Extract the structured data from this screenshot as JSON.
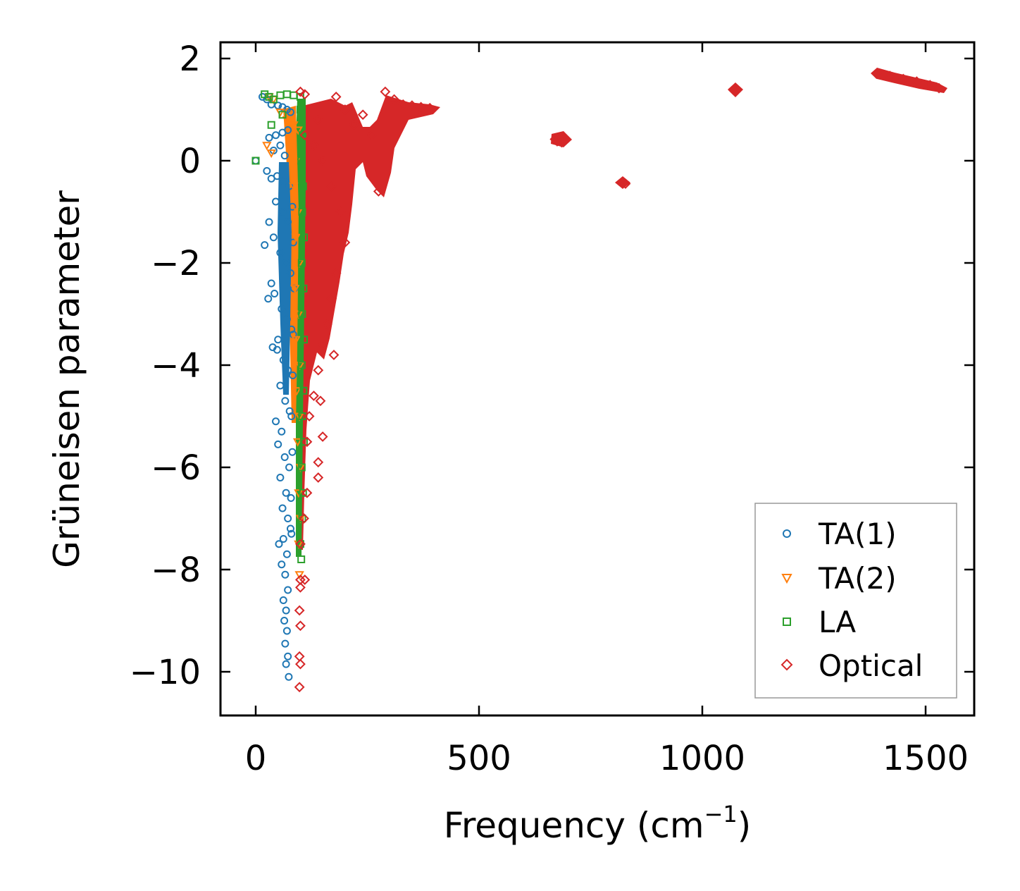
{
  "chart_data": {
    "type": "scatter",
    "title": "",
    "xlabel": "Frequency (cm",
    "xlabel_sup": "−1",
    "xlabel_end": ")",
    "ylabel": "Grüneisen parameter",
    "xlim": [
      -75,
      1610
    ],
    "ylim": [
      -10.85,
      2.3
    ],
    "xticks": [
      0,
      500,
      1000,
      1500
    ],
    "xtick_labels": [
      "0",
      "500",
      "1000",
      "1500"
    ],
    "yticks": [
      2,
      0,
      -2,
      -4,
      -6,
      -8,
      -10
    ],
    "ytick_labels": [
      "2",
      "0",
      "−2",
      "−4",
      "−6",
      "−8",
      "−10"
    ],
    "grid": false,
    "legend_position": "bottom-right",
    "series": [
      {
        "name": "TA(1)",
        "color": "#1f77b4",
        "marker": "circle",
        "points": [
          [
            0,
            0
          ],
          [
            15,
            1.25
          ],
          [
            25,
            1.2
          ],
          [
            35,
            1.1
          ],
          [
            50,
            1.08
          ],
          [
            60,
            1.05
          ],
          [
            70,
            1.0
          ],
          [
            78,
            0.95
          ],
          [
            30,
            0.45
          ],
          [
            45,
            0.5
          ],
          [
            60,
            0.55
          ],
          [
            72,
            0.6
          ],
          [
            40,
            0.2
          ],
          [
            55,
            0.3
          ],
          [
            65,
            0.1
          ],
          [
            25,
            -0.2
          ],
          [
            35,
            -0.35
          ],
          [
            48,
            -0.3
          ],
          [
            62,
            -0.4
          ],
          [
            75,
            -0.5
          ],
          [
            45,
            -0.8
          ],
          [
            60,
            -1.0
          ],
          [
            72,
            -1.2
          ],
          [
            30,
            -1.2
          ],
          [
            40,
            -1.5
          ],
          [
            20,
            -1.65
          ],
          [
            55,
            -1.8
          ],
          [
            68,
            -2.0
          ],
          [
            78,
            -2.2
          ],
          [
            35,
            -2.4
          ],
          [
            42,
            -2.6
          ],
          [
            28,
            -2.7
          ],
          [
            58,
            -2.9
          ],
          [
            70,
            -3.1
          ],
          [
            80,
            -3.3
          ],
          [
            50,
            -3.5
          ],
          [
            38,
            -3.65
          ],
          [
            48,
            -3.7
          ],
          [
            62,
            -3.9
          ],
          [
            72,
            -4.1
          ],
          [
            55,
            -4.4
          ],
          [
            66,
            -4.7
          ],
          [
            76,
            -4.9
          ],
          [
            45,
            -5.1
          ],
          [
            58,
            -5.3
          ],
          [
            50,
            -5.55
          ],
          [
            65,
            -5.8
          ],
          [
            75,
            -6.0
          ],
          [
            55,
            -6.2
          ],
          [
            68,
            -6.5
          ],
          [
            60,
            -6.8
          ],
          [
            72,
            -7.0
          ],
          [
            78,
            -7.2
          ],
          [
            62,
            -7.4
          ],
          [
            52,
            -7.5
          ],
          [
            70,
            -7.7
          ],
          [
            58,
            -7.9
          ],
          [
            66,
            -8.1
          ],
          [
            72,
            -8.4
          ],
          [
            62,
            -8.6
          ],
          [
            68,
            -8.8
          ],
          [
            64,
            -9.0
          ],
          [
            70,
            -9.2
          ],
          [
            66,
            -9.45
          ],
          [
            72,
            -9.7
          ],
          [
            68,
            -9.85
          ],
          [
            74,
            -10.1
          ],
          [
            82,
            -0.9
          ],
          [
            84,
            -1.6
          ],
          [
            86,
            -2.5
          ],
          [
            84,
            -3.4
          ],
          [
            83,
            -4.2
          ],
          [
            80,
            -5.0
          ],
          [
            82,
            -5.7
          ],
          [
            79,
            -6.6
          ],
          [
            80,
            -7.3
          ]
        ]
      },
      {
        "name": "TA(2)",
        "color": "#ff7f0e",
        "marker": "triangle-down",
        "points": [
          [
            25,
            0.3
          ],
          [
            35,
            0.15
          ],
          [
            30,
            1.25
          ],
          [
            40,
            1.2
          ],
          [
            55,
            0.95
          ],
          [
            70,
            0.8
          ],
          [
            85,
            0.7
          ],
          [
            95,
            0.6
          ],
          [
            80,
            0.3
          ],
          [
            90,
            0.0
          ],
          [
            85,
            -0.5
          ],
          [
            95,
            -1.0
          ],
          [
            90,
            -1.5
          ],
          [
            98,
            -2.0
          ],
          [
            88,
            -2.5
          ],
          [
            96,
            -3.0
          ],
          [
            90,
            -3.5
          ],
          [
            99,
            -4.0
          ],
          [
            92,
            -4.5
          ],
          [
            98,
            -5.0
          ],
          [
            94,
            -5.5
          ],
          [
            100,
            -6.0
          ],
          [
            96,
            -6.5
          ],
          [
            100,
            -7.0
          ],
          [
            96,
            -7.5
          ],
          [
            98,
            -8.1
          ]
        ]
      },
      {
        "name": "LA",
        "color": "#2ca02c",
        "marker": "square",
        "points": [
          [
            0,
            0
          ],
          [
            20,
            1.3
          ],
          [
            30,
            1.25
          ],
          [
            40,
            1.2
          ],
          [
            55,
            1.28
          ],
          [
            70,
            1.3
          ],
          [
            85,
            1.28
          ],
          [
            100,
            1.25
          ],
          [
            35,
            0.7
          ],
          [
            60,
            0.9
          ],
          [
            100,
            1.0
          ],
          [
            105,
            0.5
          ],
          [
            102,
            0.0
          ],
          [
            106,
            -0.5
          ],
          [
            104,
            -1.0
          ],
          [
            108,
            -1.5
          ],
          [
            103,
            -2.0
          ],
          [
            107,
            -2.5
          ],
          [
            104,
            -3.0
          ],
          [
            108,
            -3.5
          ],
          [
            103,
            -4.0
          ],
          [
            107,
            -4.5
          ],
          [
            104,
            -5.0
          ],
          [
            108,
            -5.5
          ],
          [
            103,
            -6.0
          ],
          [
            106,
            -6.5
          ],
          [
            104,
            -7.0
          ],
          [
            100,
            -7.5
          ],
          [
            102,
            -7.8
          ]
        ]
      },
      {
        "name": "Optical",
        "color": "#d62728",
        "marker": "diamond",
        "points": [
          [
            100,
            1.35
          ],
          [
            110,
            1.3
          ],
          [
            140,
            0.8
          ],
          [
            180,
            1.25
          ],
          [
            200,
            1.0
          ],
          [
            220,
            0.7
          ],
          [
            240,
            0.9
          ],
          [
            260,
            0.5
          ],
          [
            275,
            -0.6
          ],
          [
            290,
            1.35
          ],
          [
            310,
            1.2
          ],
          [
            330,
            1.1
          ],
          [
            350,
            1.08
          ],
          [
            370,
            1.05
          ],
          [
            390,
            1.03
          ],
          [
            110,
            0.5
          ],
          [
            130,
            0.3
          ],
          [
            150,
            0.0
          ],
          [
            170,
            -0.5
          ],
          [
            190,
            -1.0
          ],
          [
            200,
            -1.6
          ],
          [
            180,
            -2.2
          ],
          [
            170,
            -2.7
          ],
          [
            160,
            -3.2
          ],
          [
            150,
            -3.6
          ],
          [
            175,
            -3.8
          ],
          [
            140,
            -4.1
          ],
          [
            130,
            -4.6
          ],
          [
            145,
            -4.7
          ],
          [
            120,
            -5.0
          ],
          [
            115,
            -5.5
          ],
          [
            150,
            -5.4
          ],
          [
            140,
            -5.9
          ],
          [
            140,
            -6.2
          ],
          [
            115,
            -6.5
          ],
          [
            108,
            -7.0
          ],
          [
            100,
            -7.5
          ],
          [
            100,
            -8.2
          ],
          [
            110,
            -8.2
          ],
          [
            100,
            -8.35
          ],
          [
            98,
            -8.8
          ],
          [
            100,
            -9.1
          ],
          [
            98,
            -9.7
          ],
          [
            100,
            -9.85
          ],
          [
            98,
            -10.3
          ],
          [
            670,
            0.42
          ],
          [
            680,
            0.45
          ],
          [
            690,
            0.4
          ],
          [
            675,
            0.38
          ],
          [
            685,
            0.36
          ],
          [
            820,
            -0.42
          ],
          [
            828,
            -0.45
          ],
          [
            1070,
            1.38
          ],
          [
            1075,
            1.4
          ],
          [
            1390,
            1.7
          ],
          [
            1420,
            1.66
          ],
          [
            1450,
            1.6
          ],
          [
            1480,
            1.55
          ],
          [
            1510,
            1.48
          ],
          [
            1530,
            1.42
          ]
        ]
      }
    ]
  }
}
